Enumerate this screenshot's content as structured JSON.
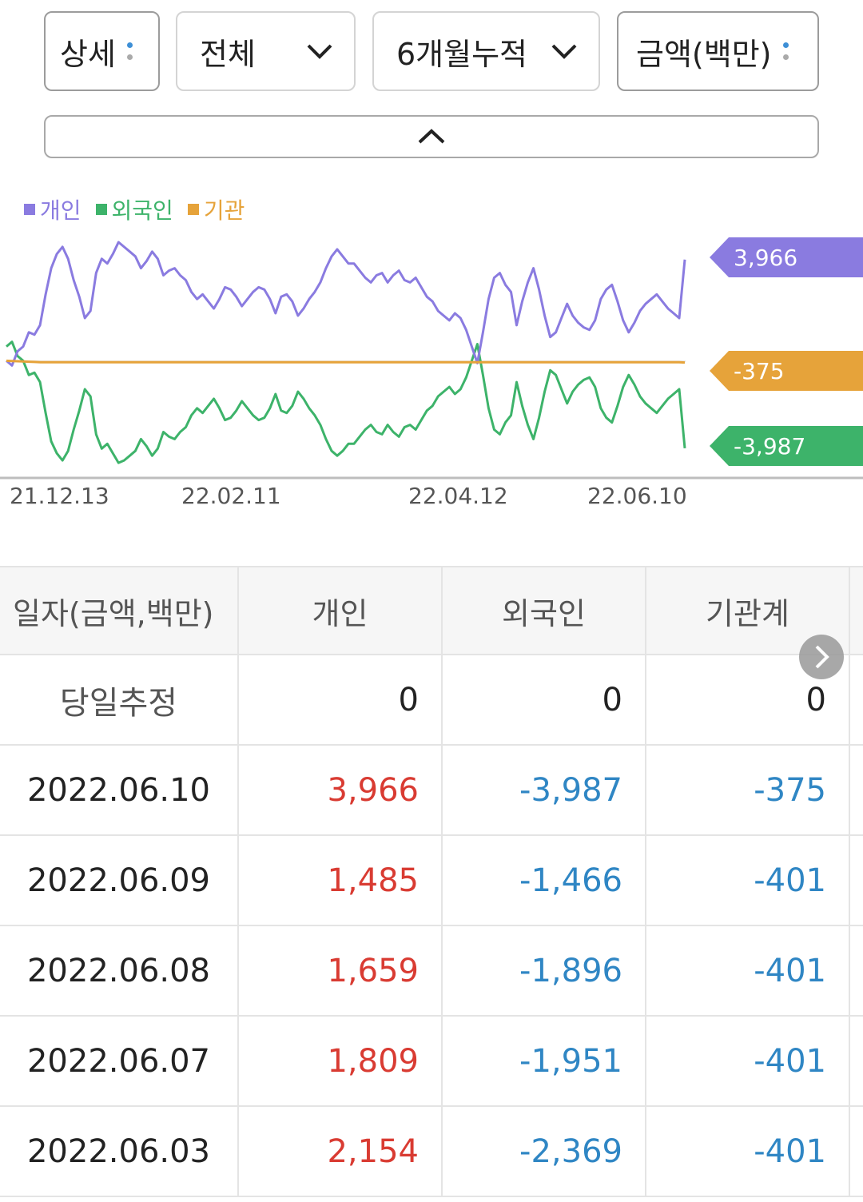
{
  "filters": {
    "detail": "상세",
    "scope": "전체",
    "period": "6개월누적",
    "unit": "금액(백만)"
  },
  "legend": [
    {
      "label": "개인",
      "color": "#8a7be0"
    },
    {
      "label": "외국인",
      "color": "#3db36a"
    },
    {
      "label": "기관",
      "color": "#e6a33a"
    }
  ],
  "chart_data": {
    "type": "line",
    "x_ticks": [
      "21.12.13",
      "22.02.11",
      "22.04.12",
      "22.06.10"
    ],
    "series": [
      {
        "name": "개인",
        "color": "#8a7be0",
        "last_value": "3,966",
        "values": [
          -300,
          -500,
          100,
          300,
          900,
          800,
          1200,
          2500,
          3600,
          4200,
          4500,
          4000,
          3100,
          2400,
          1500,
          1800,
          3400,
          4000,
          3800,
          4200,
          4700,
          4500,
          4300,
          4100,
          3600,
          3900,
          4300,
          4000,
          3300,
          3500,
          3600,
          3300,
          3100,
          2600,
          2300,
          2500,
          2200,
          1900,
          2300,
          2800,
          2700,
          2400,
          2000,
          2300,
          2600,
          2800,
          2700,
          2300,
          1700,
          2400,
          2500,
          2200,
          1600,
          1900,
          2300,
          2600,
          3000,
          3600,
          4100,
          4400,
          4100,
          3800,
          3800,
          3500,
          3200,
          3000,
          3300,
          3400,
          3000,
          3300,
          3500,
          3100,
          3000,
          3200,
          2800,
          2400,
          2200,
          1800,
          1600,
          1400,
          1700,
          1500,
          1000,
          300,
          -400,
          900,
          2300,
          3200,
          3400,
          2900,
          2600,
          1200,
          2200,
          3000,
          3600,
          2700,
          1600,
          700,
          900,
          1500,
          2100,
          1600,
          1300,
          1100,
          1000,
          1400,
          2300,
          2700,
          2900,
          2200,
          1400,
          900,
          1300,
          1800,
          2100,
          2300,
          2500,
          2200,
          1900,
          1700,
          1500,
          3966
        ]
      },
      {
        "name": "외국인",
        "color": "#3db36a",
        "last_value": "-3,987",
        "values": [
          300,
          500,
          -100,
          -300,
          -900,
          -800,
          -1200,
          -2500,
          -3700,
          -4200,
          -4500,
          -4100,
          -3200,
          -2400,
          -1500,
          -1800,
          -3400,
          -4000,
          -3800,
          -4200,
          -4600,
          -4500,
          -4300,
          -4100,
          -3600,
          -3900,
          -4300,
          -4000,
          -3300,
          -3500,
          -3600,
          -3300,
          -3100,
          -2600,
          -2300,
          -2500,
          -2200,
          -1900,
          -2300,
          -2800,
          -2700,
          -2400,
          -2000,
          -2300,
          -2600,
          -2800,
          -2700,
          -2300,
          -1700,
          -2400,
          -2500,
          -2200,
          -1600,
          -1900,
          -2300,
          -2600,
          -3000,
          -3600,
          -4100,
          -4300,
          -4100,
          -3800,
          -3800,
          -3500,
          -3200,
          -3000,
          -3300,
          -3400,
          -3000,
          -3300,
          -3500,
          -3100,
          -3000,
          -3200,
          -2800,
          -2400,
          -2200,
          -1800,
          -1600,
          -1400,
          -1700,
          -1500,
          -1000,
          -300,
          400,
          -900,
          -2300,
          -3200,
          -3400,
          -2900,
          -2600,
          -1200,
          -2200,
          -3000,
          -3600,
          -2700,
          -1600,
          -700,
          -900,
          -1500,
          -2100,
          -1600,
          -1300,
          -1100,
          -1000,
          -1400,
          -2300,
          -2700,
          -2900,
          -2200,
          -1400,
          -900,
          -1300,
          -1800,
          -2100,
          -2300,
          -2500,
          -2200,
          -1900,
          -1700,
          -1500,
          -3987
        ]
      },
      {
        "name": "기관",
        "color": "#e6a33a",
        "last_value": "-375",
        "values": [
          -300,
          -310,
          -320,
          -330,
          -340,
          -350,
          -360,
          -360,
          -360,
          -360,
          -360,
          -360,
          -360,
          -360,
          -360,
          -360,
          -360,
          -360,
          -360,
          -360,
          -360,
          -360,
          -360,
          -360,
          -360,
          -360,
          -360,
          -360,
          -360,
          -360,
          -360,
          -360,
          -360,
          -360,
          -360,
          -360,
          -360,
          -360,
          -360,
          -360,
          -360,
          -360,
          -360,
          -360,
          -360,
          -360,
          -360,
          -360,
          -360,
          -360,
          -360,
          -360,
          -360,
          -360,
          -360,
          -360,
          -360,
          -360,
          -360,
          -360,
          -360,
          -360,
          -360,
          -360,
          -360,
          -360,
          -360,
          -360,
          -360,
          -360,
          -360,
          -360,
          -360,
          -360,
          -360,
          -360,
          -360,
          -360,
          -360,
          -360,
          -360,
          -360,
          -360,
          -360,
          -360,
          -360,
          -360,
          -360,
          -360,
          -360,
          -360,
          -360,
          -360,
          -360,
          -360,
          -360,
          -360,
          -360,
          -360,
          -360,
          -360,
          -360,
          -360,
          -360,
          -360,
          -360,
          -360,
          -360,
          -360,
          -360,
          -360,
          -360,
          -360,
          -360,
          -360,
          -360,
          -360,
          -360,
          -360,
          -360,
          -375
        ]
      }
    ]
  },
  "table": {
    "headers": [
      "일자(금액,백만)",
      "개인",
      "외국인",
      "기관계"
    ],
    "estimate": {
      "label": "당일추정",
      "individual": "0",
      "foreign": "0",
      "institution": "0"
    },
    "rows": [
      {
        "date": "2022.06.10",
        "individual": "3,966",
        "foreign": "-3,987",
        "institution": "-375"
      },
      {
        "date": "2022.06.09",
        "individual": "1,485",
        "foreign": "-1,466",
        "institution": "-401"
      },
      {
        "date": "2022.06.08",
        "individual": "1,659",
        "foreign": "-1,896",
        "institution": "-401"
      },
      {
        "date": "2022.06.07",
        "individual": "1,809",
        "foreign": "-1,951",
        "institution": "-401"
      },
      {
        "date": "2022.06.03",
        "individual": "2,154",
        "foreign": "-2,369",
        "institution": "-401"
      }
    ]
  }
}
